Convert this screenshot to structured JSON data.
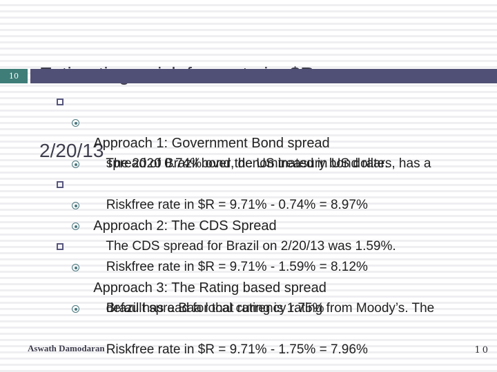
{
  "slide": {
    "title_line1": "Estimating a risk free rate in  $R on",
    "title_line2": "2/20/13",
    "slide_number_badge": "10",
    "content": {
      "lines": [
        {
          "bullet": "square",
          "text": "Approach 1: Government Bond spread"
        },
        {
          "bullet": "circle",
          "text": "The 2020 Brazil bond, denominated in US dollars, has a"
        },
        {
          "bullet": "none",
          "text": "spread of 0.74% over the US treasury bond rate."
        },
        {
          "bullet": "circle",
          "text": "Riskfree rate in $R = 9.71% - 0.74% = 8.97%"
        },
        {
          "bullet": "square",
          "text": "Approach 2: The CDS Spread"
        },
        {
          "bullet": "circle",
          "text": "The CDS spread for Brazil on 2/20/13 was 1.59%."
        },
        {
          "bullet": "circle",
          "text": "Riskfree rate in $R = 9.71% - 1.59% = 8.12%"
        },
        {
          "bullet": "square",
          "text": "Approach 3: The Rating based spread"
        },
        {
          "bullet": "circle",
          "text": "Brazil has a Baa local currency rating from Moody’s. The"
        },
        {
          "bullet": "none",
          "text": "default spread for that rating is 1.75%"
        },
        {
          "bullet": "circle",
          "text": "Riskfree rate in $R = 9.71% - 1.75% = 7.96%"
        }
      ]
    },
    "footer": {
      "author": "Aswath Damodaran",
      "page_number": "10"
    },
    "colors": {
      "accent_bar": "#504f75",
      "badge_teal": "#3e7d78",
      "title_text": "#3f3e4e",
      "body_text": "#212121",
      "square_bullet": "#55547b",
      "circle_bullet": "#47767c",
      "stripe": "#efeff2"
    }
  }
}
